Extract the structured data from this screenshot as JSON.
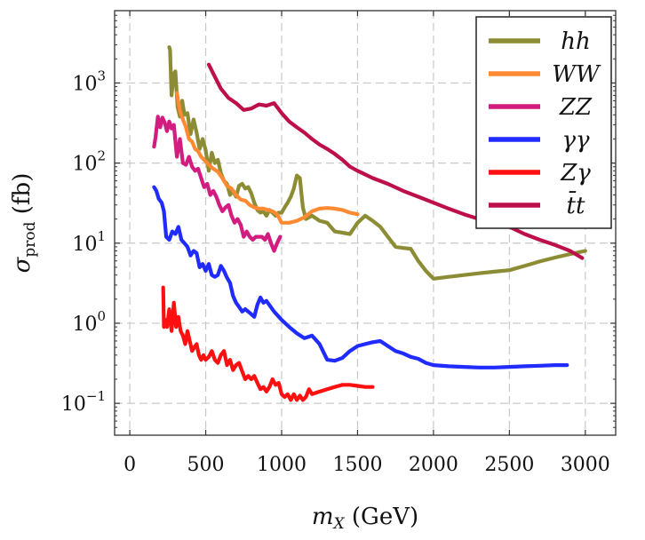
{
  "chart_data": {
    "type": "line",
    "title": "",
    "xlabel": "m_X (GeV)",
    "ylabel": "σ_prod (fb)",
    "y_scale": "log",
    "xlim": [
      -100,
      3200
    ],
    "ylim": [
      0.04,
      8000
    ],
    "x_ticks": [
      0,
      500,
      1000,
      1500,
      2000,
      2500,
      3000
    ],
    "x_tick_labels": [
      "0",
      "500",
      "1000",
      "1500",
      "2000",
      "2500",
      "3000"
    ],
    "y_ticks": [
      0.1,
      1,
      10,
      100,
      1000
    ],
    "y_tick_labels": [
      {
        "base": "10",
        "exp": "−1"
      },
      {
        "base": "10",
        "exp": "0"
      },
      {
        "base": "10",
        "exp": "1"
      },
      {
        "base": "10",
        "exp": "2"
      },
      {
        "base": "10",
        "exp": "3"
      }
    ],
    "grid": true,
    "legend_position": "top-right",
    "series": [
      {
        "name": "hh",
        "color": "#8c8c34",
        "x": [
          260,
          265,
          275,
          290,
          300,
          315,
          330,
          345,
          360,
          380,
          400,
          420,
          440,
          460,
          480,
          500,
          520,
          540,
          560,
          580,
          600,
          620,
          640,
          660,
          680,
          700,
          720,
          740,
          760,
          780,
          800,
          820,
          840,
          860,
          880,
          900,
          920,
          940,
          960,
          980,
          1000,
          1020,
          1040,
          1060,
          1080,
          1100,
          1120,
          1140,
          1160,
          1180,
          1200,
          1250,
          1300,
          1350,
          1400,
          1450,
          1500,
          1550,
          1600,
          1650,
          1700,
          1750,
          1800,
          1850,
          1900,
          1950,
          2000,
          2100,
          2200,
          2300,
          2400,
          2500,
          2600,
          2700,
          2800,
          2900,
          3000
        ],
        "values": [
          2800,
          2600,
          700,
          1300,
          1400,
          500,
          380,
          600,
          400,
          420,
          230,
          350,
          240,
          150,
          200,
          145,
          80,
          135,
          100,
          110,
          75,
          60,
          55,
          40,
          45,
          38,
          52,
          55,
          48,
          50,
          42,
          32,
          26,
          24,
          25,
          22,
          26,
          24,
          22,
          24,
          24,
          28,
          32,
          38,
          48,
          70,
          65,
          28,
          20,
          21,
          22,
          19,
          18,
          14,
          13.5,
          13,
          18,
          22,
          19,
          16,
          12,
          9,
          8.7,
          8.5,
          6,
          4.5,
          3.6,
          3.8,
          4,
          4.2,
          4.4,
          4.6,
          5.2,
          5.9,
          6.6,
          7.3,
          8
        ],
        "show_markers": false
      },
      {
        "name": "WW",
        "color": "#ff8a33",
        "x": [
          310,
          330,
          350,
          370,
          390,
          410,
          430,
          450,
          470,
          490,
          520,
          550,
          580,
          610,
          640,
          670,
          700,
          730,
          760,
          790,
          820,
          850,
          880,
          910,
          940,
          970,
          1000,
          1050,
          1100,
          1150,
          1200,
          1250,
          1300,
          1350,
          1400,
          1450,
          1500
        ],
        "values": [
          750,
          450,
          350,
          280,
          200,
          185,
          150,
          140,
          120,
          110,
          95,
          85,
          78,
          65,
          52,
          48,
          40,
          35,
          34,
          30,
          28,
          27,
          27,
          26,
          25,
          23,
          18,
          18,
          19,
          21,
          25,
          27,
          27.5,
          27,
          26,
          24,
          23
        ],
        "show_markers": false
      },
      {
        "name": "ZZ",
        "color": "#d31c7f",
        "x": [
          160,
          170,
          185,
          200,
          215,
          230,
          245,
          260,
          275,
          290,
          310,
          330,
          350,
          370,
          390,
          410,
          430,
          450,
          470,
          490,
          510,
          530,
          550,
          570,
          590,
          610,
          630,
          650,
          670,
          690,
          710,
          730,
          750,
          770,
          790,
          810,
          830,
          850,
          870,
          890,
          910,
          930,
          950,
          970,
          990
        ],
        "values": [
          160,
          210,
          380,
          280,
          370,
          320,
          250,
          330,
          270,
          300,
          120,
          200,
          100,
          95,
          120,
          90,
          80,
          85,
          65,
          50,
          55,
          40,
          45,
          38,
          30,
          25,
          28,
          30,
          22,
          18,
          20,
          17,
          12,
          14,
          12,
          11,
          12,
          12,
          12,
          11,
          13,
          10,
          8,
          10,
          12
        ],
        "show_markers": false
      },
      {
        "name": "γγ",
        "color": "#1f2bff",
        "x": [
          160,
          175,
          190,
          210,
          225,
          240,
          260,
          280,
          300,
          320,
          340,
          360,
          380,
          400,
          420,
          440,
          460,
          480,
          500,
          520,
          540,
          560,
          580,
          600,
          620,
          640,
          660,
          680,
          700,
          720,
          740,
          760,
          780,
          800,
          820,
          840,
          860,
          880,
          900,
          950,
          1000,
          1050,
          1100,
          1150,
          1200,
          1250,
          1300,
          1350,
          1400,
          1450,
          1500,
          1550,
          1600,
          1650,
          1700,
          1750,
          1800,
          1850,
          1900,
          1950,
          2000,
          2100,
          2200,
          2300,
          2400,
          2500,
          2600,
          2700,
          2800,
          2880
        ],
        "values": [
          50,
          45,
          36,
          32,
          25,
          12,
          11,
          14,
          13,
          16,
          11,
          10,
          9,
          7,
          8,
          7.5,
          5,
          5.5,
          4.5,
          5.5,
          4,
          3.8,
          4,
          5.2,
          4.5,
          3.7,
          3.2,
          2.2,
          1.8,
          1.6,
          1.4,
          1.5,
          1.4,
          1.3,
          1.2,
          1.7,
          2.1,
          1.8,
          1.9,
          1.4,
          1.1,
          0.9,
          0.75,
          0.65,
          0.7,
          0.55,
          0.35,
          0.34,
          0.37,
          0.45,
          0.52,
          0.55,
          0.58,
          0.6,
          0.52,
          0.45,
          0.42,
          0.38,
          0.36,
          0.32,
          0.3,
          0.29,
          0.285,
          0.28,
          0.28,
          0.285,
          0.29,
          0.295,
          0.3,
          0.3
        ],
        "show_markers": false
      },
      {
        "name": "Zγ",
        "color": "#ff1010",
        "x": [
          220,
          225,
          235,
          245,
          260,
          275,
          290,
          305,
          320,
          335,
          350,
          365,
          380,
          395,
          410,
          425,
          440,
          455,
          470,
          485,
          500,
          520,
          540,
          560,
          580,
          600,
          620,
          640,
          660,
          680,
          700,
          720,
          740,
          760,
          780,
          800,
          820,
          840,
          860,
          880,
          900,
          920,
          940,
          960,
          980,
          1000,
          1020,
          1040,
          1060,
          1080,
          1100,
          1120,
          1140,
          1160,
          1180,
          1200,
          1250,
          1300,
          1350,
          1400,
          1450,
          1500,
          1550,
          1600
        ],
        "values": [
          2.8,
          0.9,
          1.1,
          0.9,
          1.5,
          0.8,
          1.8,
          0.9,
          1.2,
          0.8,
          0.7,
          0.55,
          0.8,
          0.6,
          0.45,
          0.5,
          0.55,
          0.4,
          0.35,
          0.4,
          0.35,
          0.38,
          0.45,
          0.35,
          0.32,
          0.4,
          0.45,
          0.3,
          0.35,
          0.26,
          0.3,
          0.32,
          0.25,
          0.2,
          0.22,
          0.2,
          0.22,
          0.18,
          0.15,
          0.16,
          0.14,
          0.16,
          0.2,
          0.17,
          0.18,
          0.13,
          0.12,
          0.13,
          0.11,
          0.13,
          0.11,
          0.125,
          0.11,
          0.12,
          0.15,
          0.13,
          0.14,
          0.15,
          0.16,
          0.17,
          0.17,
          0.165,
          0.16,
          0.16
        ],
        "show_markers": false
      },
      {
        "name": "t̄t",
        "color": "#bd0f4a",
        "x": [
          520,
          560,
          600,
          650,
          700,
          750,
          800,
          850,
          900,
          950,
          1000,
          1050,
          1100,
          1150,
          1200,
          1250,
          1300,
          1350,
          1400,
          1450,
          1500,
          1600,
          1700,
          1800,
          1900,
          2000,
          2100,
          2200,
          2300,
          2400,
          2500,
          2600,
          2700,
          2800,
          2900,
          2980
        ],
        "values": [
          1700,
          1200,
          850,
          650,
          560,
          460,
          480,
          540,
          520,
          560,
          420,
          330,
          280,
          240,
          200,
          170,
          150,
          130,
          110,
          90,
          80,
          65,
          55,
          45,
          38,
          32,
          27,
          23,
          20,
          18,
          16,
          13,
          11,
          9.5,
          8,
          6.5
        ],
        "show_markers": false
      }
    ]
  }
}
